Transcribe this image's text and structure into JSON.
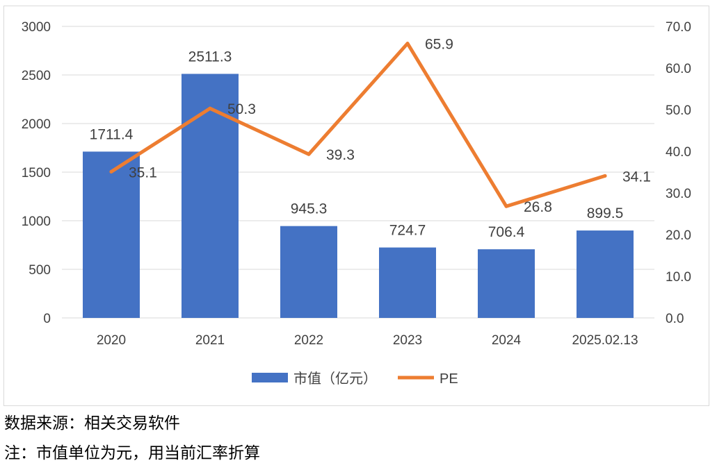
{
  "chart_data": {
    "type": "bar+line",
    "categories": [
      "2020",
      "2021",
      "2022",
      "2023",
      "2024",
      "2025.02.13"
    ],
    "series": [
      {
        "name": "市值（亿元）",
        "type": "bar",
        "axis": "left",
        "color": "#4472C4",
        "values": [
          1711.4,
          2511.3,
          945.3,
          724.7,
          706.4,
          899.5
        ],
        "labels": [
          "1711.4",
          "2511.3",
          "945.3",
          "724.7",
          "706.4",
          "899.5"
        ]
      },
      {
        "name": "PE",
        "type": "line",
        "axis": "right",
        "color": "#ED7D31",
        "values": [
          35.1,
          50.3,
          39.3,
          65.9,
          26.8,
          34.1
        ],
        "labels": [
          "35.1",
          "50.3",
          "39.3",
          "65.9",
          "26.8",
          "34.1"
        ]
      }
    ],
    "y_left": {
      "lim": [
        0,
        3000
      ],
      "ticks": [
        "0",
        "500",
        "1000",
        "1500",
        "2000",
        "2500",
        "3000"
      ]
    },
    "y_right": {
      "lim": [
        0,
        70
      ],
      "ticks": [
        "0.0",
        "10.0",
        "20.0",
        "30.0",
        "40.0",
        "50.0",
        "60.0",
        "70.0"
      ]
    },
    "grid": true,
    "legend": "bottom"
  },
  "notes": {
    "source": "数据来源：相关交易软件",
    "note": "注：市值单位为元，用当前汇率折算"
  }
}
